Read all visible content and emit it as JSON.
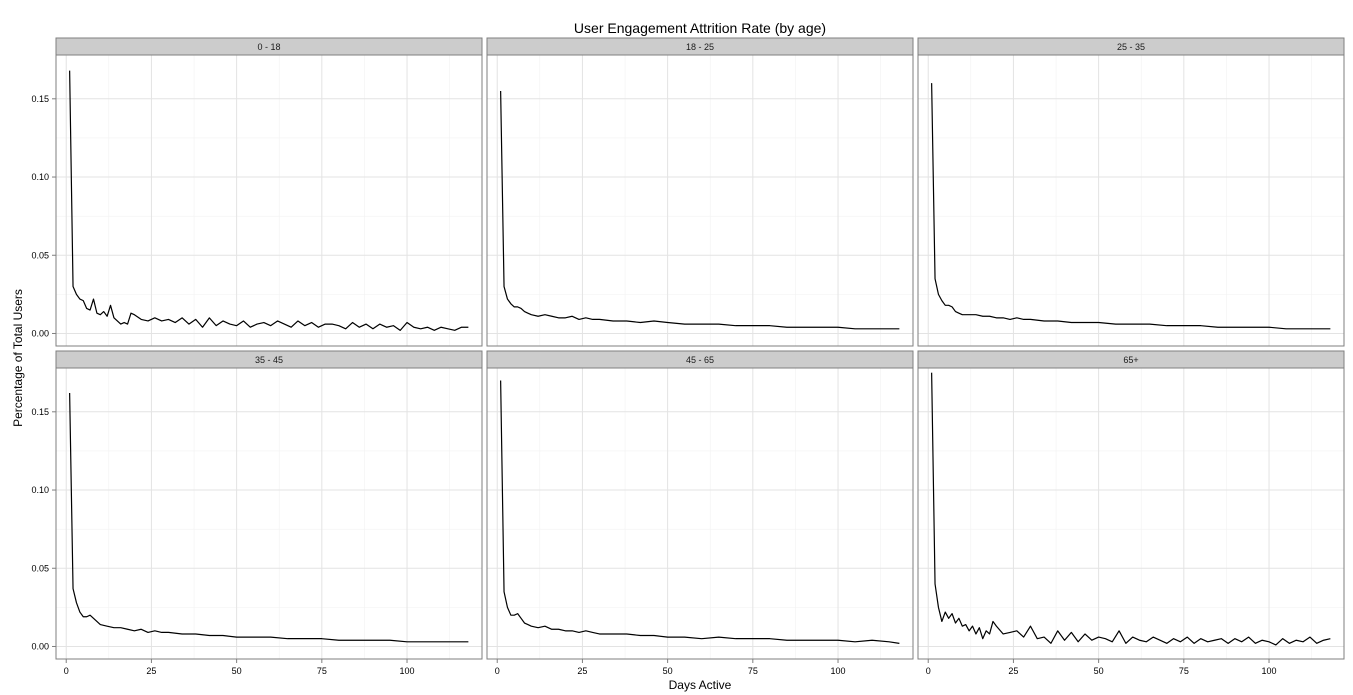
{
  "chart_data": {
    "type": "line",
    "title": "User Engagement Attrition Rate (by age)",
    "xlabel": "Days Active",
    "ylabel": "Percentage of Total Users",
    "xlim": [
      -3,
      122
    ],
    "ylim": [
      -0.008,
      0.178
    ],
    "x_ticks": [
      0,
      25,
      50,
      75,
      100
    ],
    "x_tick_labels": [
      "0",
      "25",
      "50",
      "75",
      "100"
    ],
    "y_ticks": [
      0.0,
      0.05,
      0.1,
      0.15
    ],
    "y_tick_labels": [
      "0.00",
      "0.05",
      "0.10",
      "0.15"
    ],
    "grid": true,
    "layout": "facet grid, 2 rows x 3 columns, shared axes",
    "facets": [
      {
        "label": "0 - 18",
        "x": [
          1,
          2,
          3,
          4,
          5,
          6,
          7,
          8,
          9,
          10,
          11,
          12,
          13,
          14,
          15,
          16,
          17,
          18,
          19,
          20,
          22,
          24,
          26,
          28,
          30,
          32,
          34,
          36,
          38,
          40,
          42,
          44,
          46,
          48,
          50,
          52,
          54,
          56,
          58,
          60,
          62,
          64,
          66,
          68,
          70,
          72,
          74,
          76,
          78,
          80,
          82,
          84,
          86,
          88,
          90,
          92,
          94,
          96,
          98,
          100,
          102,
          104,
          106,
          108,
          110,
          112,
          114,
          116,
          118
        ],
        "y": [
          0.168,
          0.03,
          0.025,
          0.022,
          0.021,
          0.016,
          0.015,
          0.022,
          0.013,
          0.012,
          0.014,
          0.011,
          0.018,
          0.01,
          0.008,
          0.006,
          0.007,
          0.006,
          0.013,
          0.012,
          0.009,
          0.008,
          0.01,
          0.008,
          0.009,
          0.007,
          0.01,
          0.006,
          0.009,
          0.004,
          0.01,
          0.005,
          0.008,
          0.006,
          0.005,
          0.008,
          0.004,
          0.006,
          0.007,
          0.005,
          0.008,
          0.006,
          0.004,
          0.008,
          0.005,
          0.007,
          0.004,
          0.006,
          0.006,
          0.005,
          0.003,
          0.007,
          0.004,
          0.006,
          0.003,
          0.006,
          0.004,
          0.005,
          0.002,
          0.007,
          0.004,
          0.003,
          0.004,
          0.002,
          0.004,
          0.003,
          0.002,
          0.004,
          0.004
        ]
      },
      {
        "label": "18 - 25",
        "x": [
          1,
          2,
          3,
          4,
          5,
          6,
          7,
          8,
          9,
          10,
          12,
          14,
          16,
          18,
          20,
          22,
          24,
          26,
          28,
          30,
          34,
          38,
          42,
          46,
          50,
          55,
          60,
          65,
          70,
          75,
          80,
          85,
          90,
          95,
          100,
          105,
          110,
          115,
          118
        ],
        "y": [
          0.155,
          0.03,
          0.022,
          0.019,
          0.017,
          0.017,
          0.016,
          0.014,
          0.013,
          0.012,
          0.011,
          0.012,
          0.011,
          0.01,
          0.01,
          0.011,
          0.009,
          0.01,
          0.009,
          0.009,
          0.008,
          0.008,
          0.007,
          0.008,
          0.007,
          0.006,
          0.006,
          0.006,
          0.005,
          0.005,
          0.005,
          0.004,
          0.004,
          0.004,
          0.004,
          0.003,
          0.003,
          0.003,
          0.003
        ]
      },
      {
        "label": "25 - 35",
        "x": [
          1,
          2,
          3,
          4,
          5,
          6,
          7,
          8,
          9,
          10,
          12,
          14,
          16,
          18,
          20,
          22,
          24,
          26,
          28,
          30,
          34,
          38,
          42,
          46,
          50,
          55,
          60,
          65,
          70,
          75,
          80,
          85,
          90,
          95,
          100,
          105,
          110,
          115,
          118
        ],
        "y": [
          0.16,
          0.035,
          0.025,
          0.021,
          0.018,
          0.018,
          0.017,
          0.014,
          0.013,
          0.012,
          0.012,
          0.012,
          0.011,
          0.011,
          0.01,
          0.01,
          0.009,
          0.01,
          0.009,
          0.009,
          0.008,
          0.008,
          0.007,
          0.007,
          0.007,
          0.006,
          0.006,
          0.006,
          0.005,
          0.005,
          0.005,
          0.004,
          0.004,
          0.004,
          0.004,
          0.003,
          0.003,
          0.003,
          0.003
        ]
      },
      {
        "label": "35 - 45",
        "x": [
          1,
          2,
          3,
          4,
          5,
          6,
          7,
          8,
          9,
          10,
          12,
          14,
          16,
          18,
          20,
          22,
          24,
          26,
          28,
          30,
          34,
          38,
          42,
          46,
          50,
          55,
          60,
          65,
          70,
          75,
          80,
          85,
          90,
          95,
          100,
          105,
          110,
          115,
          118
        ],
        "y": [
          0.162,
          0.037,
          0.028,
          0.022,
          0.019,
          0.019,
          0.02,
          0.018,
          0.016,
          0.014,
          0.013,
          0.012,
          0.012,
          0.011,
          0.01,
          0.011,
          0.009,
          0.01,
          0.009,
          0.009,
          0.008,
          0.008,
          0.007,
          0.007,
          0.006,
          0.006,
          0.006,
          0.005,
          0.005,
          0.005,
          0.004,
          0.004,
          0.004,
          0.004,
          0.003,
          0.003,
          0.003,
          0.003,
          0.003
        ]
      },
      {
        "label": "45 - 65",
        "x": [
          1,
          2,
          3,
          4,
          5,
          6,
          7,
          8,
          9,
          10,
          12,
          14,
          16,
          18,
          20,
          22,
          24,
          26,
          28,
          30,
          34,
          38,
          42,
          46,
          50,
          55,
          60,
          65,
          70,
          75,
          80,
          85,
          90,
          95,
          100,
          105,
          110,
          115,
          118
        ],
        "y": [
          0.17,
          0.035,
          0.025,
          0.02,
          0.02,
          0.021,
          0.018,
          0.015,
          0.014,
          0.013,
          0.012,
          0.013,
          0.011,
          0.011,
          0.01,
          0.01,
          0.009,
          0.01,
          0.009,
          0.008,
          0.008,
          0.008,
          0.007,
          0.007,
          0.006,
          0.006,
          0.005,
          0.006,
          0.005,
          0.005,
          0.005,
          0.004,
          0.004,
          0.004,
          0.004,
          0.003,
          0.004,
          0.003,
          0.002
        ]
      },
      {
        "label": "65+",
        "x": [
          1,
          2,
          3,
          4,
          5,
          6,
          7,
          8,
          9,
          10,
          11,
          12,
          13,
          14,
          15,
          16,
          17,
          18,
          19,
          20,
          22,
          24,
          26,
          28,
          30,
          32,
          34,
          36,
          38,
          40,
          42,
          44,
          46,
          48,
          50,
          52,
          54,
          56,
          58,
          60,
          62,
          64,
          66,
          68,
          70,
          72,
          74,
          76,
          78,
          80,
          82,
          84,
          86,
          88,
          90,
          92,
          94,
          96,
          98,
          100,
          102,
          104,
          106,
          108,
          110,
          112,
          114,
          116,
          118
        ],
        "y": [
          0.175,
          0.04,
          0.025,
          0.016,
          0.022,
          0.018,
          0.021,
          0.015,
          0.018,
          0.013,
          0.014,
          0.01,
          0.013,
          0.008,
          0.012,
          0.005,
          0.01,
          0.008,
          0.016,
          0.013,
          0.008,
          0.009,
          0.01,
          0.006,
          0.013,
          0.005,
          0.006,
          0.002,
          0.01,
          0.004,
          0.009,
          0.003,
          0.008,
          0.004,
          0.006,
          0.005,
          0.003,
          0.01,
          0.002,
          0.006,
          0.004,
          0.003,
          0.006,
          0.004,
          0.002,
          0.005,
          0.003,
          0.006,
          0.002,
          0.005,
          0.003,
          0.004,
          0.005,
          0.002,
          0.005,
          0.003,
          0.006,
          0.002,
          0.004,
          0.003,
          0.001,
          0.005,
          0.002,
          0.004,
          0.003,
          0.006,
          0.002,
          0.004,
          0.005
        ]
      }
    ]
  }
}
